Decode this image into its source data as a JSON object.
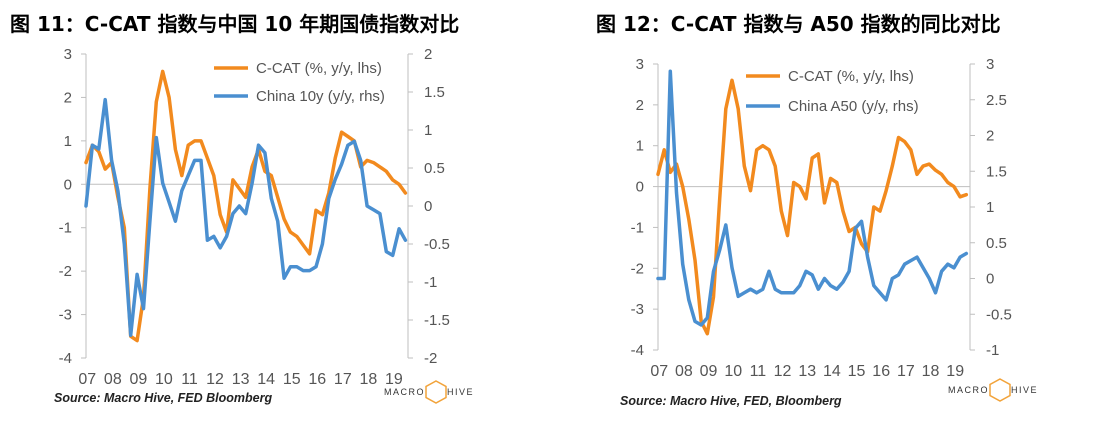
{
  "left": {
    "title": "图 11：C-CAT 指数与中国 10 年期国债指数对比",
    "source": "Source: Macro Hive, FED Bloomberg",
    "logo": {
      "text_a": "MACRO",
      "text_b": "HIVE"
    }
  },
  "right": {
    "title": "图 12：C-CAT 指数与 A50 指数的同比对比",
    "source": "Source: Macro Hive, FED, Bloomberg",
    "logo": {
      "text_a": "MACRO",
      "text_b": "HIVE"
    }
  },
  "colors": {
    "orange": "#F28A1E",
    "blue": "#4A8FD0",
    "logo_accent": "#F2A33A"
  },
  "chart_data": [
    {
      "type": "line",
      "title": "",
      "x_tick_labels": [
        "07",
        "08",
        "09",
        "10",
        "11",
        "12",
        "13",
        "14",
        "15",
        "16",
        "17",
        "18",
        "19"
      ],
      "x_range": [
        2007.0,
        2019.6
      ],
      "y_left": {
        "range": [
          -4,
          3
        ],
        "ticks": [
          3,
          2,
          1,
          0,
          -1,
          -2,
          -3,
          -4
        ]
      },
      "y_right": {
        "range": [
          -2,
          2
        ],
        "ticks": [
          "2",
          "1.5",
          "1",
          "0.5",
          "0",
          "-0.5",
          "-1",
          "-1.5",
          "-2"
        ],
        "tick_values": [
          2,
          1.5,
          1,
          0.5,
          0,
          -0.5,
          -1,
          -1.5,
          -2
        ]
      },
      "legend_position": "top-right",
      "series": [
        {
          "name": "C-CAT (%, y/y, lhs)",
          "axis": "left",
          "color": "#F28A1E",
          "x": [
            2007.0,
            2007.25,
            2007.5,
            2007.75,
            2008.0,
            2008.25,
            2008.5,
            2008.75,
            2009.0,
            2009.25,
            2009.5,
            2009.75,
            2010.0,
            2010.25,
            2010.5,
            2010.75,
            2011.0,
            2011.25,
            2011.5,
            2011.75,
            2012.0,
            2012.25,
            2012.5,
            2012.75,
            2013.0,
            2013.25,
            2013.5,
            2013.75,
            2014.0,
            2014.25,
            2014.5,
            2014.75,
            2015.0,
            2015.25,
            2015.5,
            2015.75,
            2016.0,
            2016.25,
            2016.5,
            2016.75,
            2017.0,
            2017.25,
            2017.5,
            2017.75,
            2018.0,
            2018.25,
            2018.5,
            2018.75,
            2019.0,
            2019.25,
            2019.5
          ],
          "y": [
            0.5,
            0.9,
            0.75,
            0.35,
            0.5,
            -0.3,
            -1.0,
            -3.5,
            -3.6,
            -2.6,
            -0.1,
            1.9,
            2.6,
            2.0,
            0.8,
            0.2,
            0.9,
            1.0,
            1.0,
            0.6,
            0.2,
            -0.7,
            -1.1,
            0.1,
            -0.1,
            -0.3,
            0.4,
            0.8,
            0.3,
            0.2,
            -0.3,
            -0.8,
            -1.1,
            -1.2,
            -1.4,
            -1.6,
            -0.6,
            -0.7,
            -0.2,
            0.6,
            1.2,
            1.1,
            1.0,
            0.4,
            0.55,
            0.5,
            0.4,
            0.3,
            0.1,
            0.0,
            -0.2
          ]
        },
        {
          "name": "China 10y (y/y, rhs)",
          "axis": "right",
          "color": "#4A8FD0",
          "x": [
            2007.0,
            2007.25,
            2007.5,
            2007.75,
            2008.0,
            2008.25,
            2008.5,
            2008.75,
            2009.0,
            2009.25,
            2009.5,
            2009.75,
            2010.0,
            2010.25,
            2010.5,
            2010.75,
            2011.0,
            2011.25,
            2011.5,
            2011.75,
            2012.0,
            2012.25,
            2012.5,
            2012.75,
            2013.0,
            2013.25,
            2013.5,
            2013.75,
            2014.0,
            2014.25,
            2014.5,
            2014.75,
            2015.0,
            2015.25,
            2015.5,
            2015.75,
            2016.0,
            2016.25,
            2016.5,
            2016.75,
            2017.0,
            2017.25,
            2017.5,
            2017.75,
            2018.0,
            2018.25,
            2018.5,
            2018.75,
            2019.0,
            2019.25,
            2019.5
          ],
          "y": [
            0.0,
            0.8,
            0.75,
            1.4,
            0.6,
            0.2,
            -0.5,
            -1.7,
            -0.9,
            -1.35,
            -0.2,
            0.9,
            0.3,
            0.05,
            -0.2,
            0.2,
            0.4,
            0.6,
            0.6,
            -0.45,
            -0.4,
            -0.55,
            -0.4,
            -0.1,
            0.0,
            -0.1,
            0.3,
            0.8,
            0.7,
            0.1,
            -0.2,
            -0.95,
            -0.8,
            -0.8,
            -0.85,
            -0.85,
            -0.8,
            -0.5,
            0.1,
            0.35,
            0.55,
            0.8,
            0.85,
            0.6,
            0.0,
            -0.05,
            -0.1,
            -0.6,
            -0.65,
            -0.3,
            -0.45
          ]
        }
      ]
    },
    {
      "type": "line",
      "title": "",
      "x_tick_labels": [
        "07",
        "08",
        "09",
        "10",
        "11",
        "12",
        "13",
        "14",
        "15",
        "16",
        "17",
        "18",
        "19"
      ],
      "x_range": [
        2007.0,
        2019.65
      ],
      "y_left": {
        "range": [
          -4,
          3
        ],
        "ticks": [
          3,
          2,
          1,
          0,
          -1,
          -2,
          -3,
          -4
        ]
      },
      "y_right": {
        "range": [
          -1,
          3
        ],
        "ticks": [
          "3",
          "2.5",
          "2",
          "1.5",
          "1",
          "0.5",
          "0",
          "-0.5",
          "-1"
        ],
        "tick_values": [
          3,
          2.5,
          2,
          1.5,
          1,
          0.5,
          0,
          -0.5,
          -1
        ]
      },
      "legend_position": "top-right",
      "series": [
        {
          "name": "C-CAT (%, y/y, lhs)",
          "axis": "left",
          "color": "#F28A1E",
          "x": [
            2007.0,
            2007.25,
            2007.5,
            2007.75,
            2008.0,
            2008.25,
            2008.5,
            2008.75,
            2009.0,
            2009.25,
            2009.5,
            2009.75,
            2010.0,
            2010.25,
            2010.5,
            2010.75,
            2011.0,
            2011.25,
            2011.5,
            2011.75,
            2012.0,
            2012.25,
            2012.5,
            2012.75,
            2013.0,
            2013.25,
            2013.5,
            2013.75,
            2014.0,
            2014.25,
            2014.5,
            2014.75,
            2015.0,
            2015.25,
            2015.5,
            2015.75,
            2016.0,
            2016.25,
            2016.5,
            2016.75,
            2017.0,
            2017.25,
            2017.5,
            2017.75,
            2018.0,
            2018.25,
            2018.5,
            2018.75,
            2019.0,
            2019.25,
            2019.5
          ],
          "y": [
            0.3,
            0.9,
            0.35,
            0.55,
            0.0,
            -0.8,
            -1.8,
            -3.3,
            -3.6,
            -2.7,
            -0.3,
            1.9,
            2.6,
            1.9,
            0.5,
            -0.1,
            0.9,
            1.0,
            0.9,
            0.5,
            -0.6,
            -1.2,
            0.1,
            0.0,
            -0.3,
            0.7,
            0.8,
            -0.4,
            0.2,
            0.1,
            -0.6,
            -1.1,
            -1.0,
            -1.4,
            -1.6,
            -0.5,
            -0.6,
            -0.1,
            0.5,
            1.2,
            1.1,
            0.9,
            0.3,
            0.5,
            0.55,
            0.4,
            0.3,
            0.1,
            0.0,
            -0.25,
            -0.2
          ]
        },
        {
          "name": "China A50 (y/y, rhs)",
          "axis": "right",
          "color": "#4A8FD0",
          "x": [
            2007.0,
            2007.25,
            2007.5,
            2007.75,
            2008.0,
            2008.25,
            2008.5,
            2008.75,
            2009.0,
            2009.25,
            2009.5,
            2009.75,
            2010.0,
            2010.25,
            2010.5,
            2010.75,
            2011.0,
            2011.25,
            2011.5,
            2011.75,
            2012.0,
            2012.25,
            2012.5,
            2012.75,
            2013.0,
            2013.25,
            2013.5,
            2013.75,
            2014.0,
            2014.25,
            2014.5,
            2014.75,
            2015.0,
            2015.25,
            2015.5,
            2015.75,
            2016.0,
            2016.25,
            2016.5,
            2016.75,
            2017.0,
            2017.25,
            2017.5,
            2017.75,
            2018.0,
            2018.25,
            2018.5,
            2018.75,
            2019.0,
            2019.25,
            2019.5
          ],
          "y": [
            0.0,
            0.0,
            2.9,
            1.2,
            0.2,
            -0.3,
            -0.6,
            -0.65,
            -0.55,
            0.1,
            0.4,
            0.75,
            0.15,
            -0.25,
            -0.2,
            -0.15,
            -0.2,
            -0.15,
            0.1,
            -0.15,
            -0.2,
            -0.2,
            -0.2,
            -0.1,
            0.1,
            0.05,
            -0.15,
            0.0,
            -0.1,
            -0.15,
            -0.05,
            0.1,
            0.7,
            0.8,
            0.3,
            -0.1,
            -0.2,
            -0.3,
            0.0,
            0.05,
            0.2,
            0.25,
            0.3,
            0.15,
            0.0,
            -0.2,
            0.1,
            0.2,
            0.15,
            0.3,
            0.35
          ]
        }
      ]
    }
  ]
}
